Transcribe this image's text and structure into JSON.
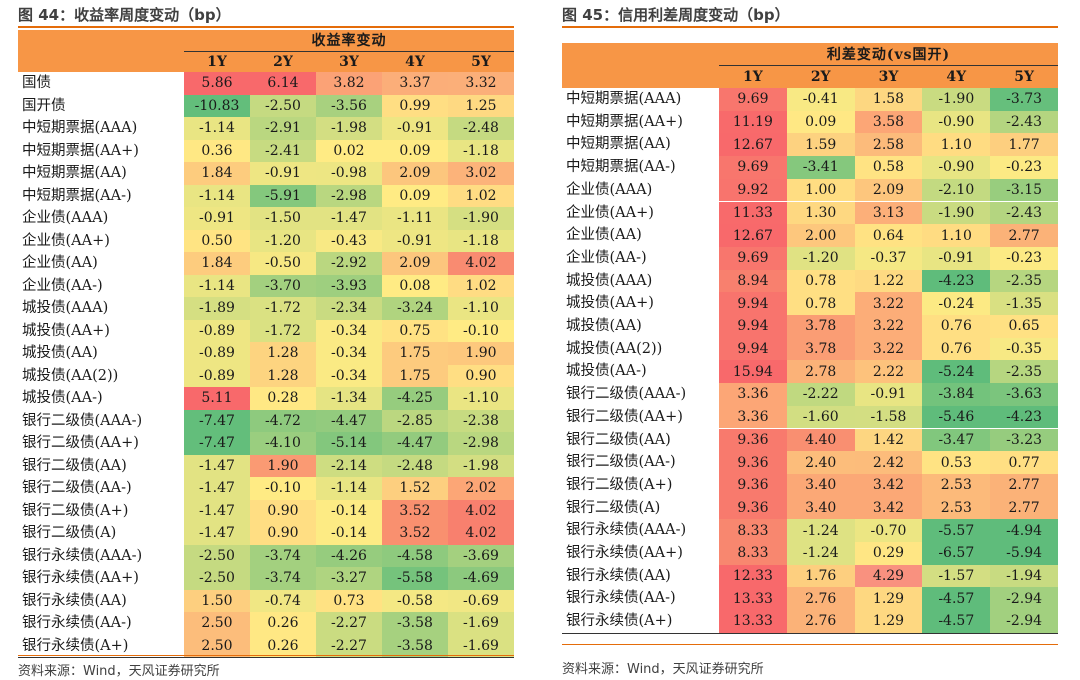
{
  "left": {
    "fig_title": "图 44：收益率周度变动（bp）",
    "header_title": "收益率变动",
    "columns": [
      "1Y",
      "2Y",
      "3Y",
      "4Y",
      "5Y"
    ],
    "source": "资料来源：Wind，天风证券研究所",
    "groups": [
      {
        "rows": [
          {
            "label": "国债",
            "values": [
              "5.86",
              "6.14",
              "3.82",
              "3.37",
              "3.32"
            ],
            "colors": [
              "#F8696B",
              "#F8696B",
              "#FBA276",
              "#FBAE79",
              "#FBAF79"
            ]
          },
          {
            "label": "国开债",
            "values": [
              "-10.83",
              "-2.50",
              "-3.56",
              "0.99",
              "1.25"
            ],
            "colors": [
              "#63BE7B",
              "#C5DA81",
              "#A8D17F",
              "#FFDE83",
              "#FED982"
            ]
          }
        ]
      },
      {
        "rows": [
          {
            "label": "中短期票据(AAA)",
            "values": [
              "-1.14",
              "-2.91",
              "-1.98",
              "-0.91",
              "-2.48"
            ],
            "colors": [
              "#E9E583",
              "#BAD780",
              "#D3DE82",
              "#EEE683",
              "#C5DA81"
            ]
          },
          {
            "label": "中短期票据(AA+)",
            "values": [
              "0.36",
              "-2.41",
              "0.02",
              "0.09",
              "-1.18"
            ],
            "colors": [
              "#FFE884",
              "#C7DB81",
              "#FFEB84",
              "#FFEB84",
              "#E8E583"
            ]
          },
          {
            "label": "中短期票据(AA)",
            "values": [
              "1.84",
              "-0.91",
              "-0.98",
              "2.09",
              "3.02"
            ],
            "colors": [
              "#FDCC7E",
              "#EEE683",
              "#EDE683",
              "#FCC67D",
              "#FCB37A"
            ]
          },
          {
            "label": "中短期票据(AA-)",
            "values": [
              "-1.14",
              "-5.91",
              "-2.98",
              "0.09",
              "1.02"
            ],
            "colors": [
              "#E9E583",
              "#84C87D",
              "#B9D780",
              "#FFEB84",
              "#FFDC83"
            ]
          }
        ]
      },
      {
        "rows": [
          {
            "label": "企业债(AAA)",
            "values": [
              "-0.91",
              "-1.50",
              "-1.47",
              "-1.11",
              "-1.90"
            ],
            "colors": [
              "#EEE683",
              "#E2E383",
              "#E2E383",
              "#EAE583",
              "#D5DF82"
            ]
          },
          {
            "label": "企业债(AA+)",
            "values": [
              "0.50",
              "-1.20",
              "-0.43",
              "-0.91",
              "-1.18"
            ],
            "colors": [
              "#FFE483",
              "#E8E583",
              "#F8E984",
              "#EEE683",
              "#E8E583"
            ]
          },
          {
            "label": "企业债(AA)",
            "values": [
              "1.84",
              "-0.50",
              "-2.92",
              "2.09",
              "4.02"
            ],
            "colors": [
              "#FDCC7E",
              "#F6E883",
              "#BAD780",
              "#FCC67D",
              "#F98B71"
            ]
          },
          {
            "label": "企业债(AA-)",
            "values": [
              "-1.14",
              "-3.70",
              "-3.93",
              "0.08",
              "1.02"
            ],
            "colors": [
              "#E9E583",
              "#A3D07F",
              "#9ECF7F",
              "#FFEB84",
              "#FFDC83"
            ]
          }
        ]
      },
      {
        "rows": [
          {
            "label": "城投债(AAA)",
            "values": [
              "-1.89",
              "-1.72",
              "-2.34",
              "-3.24",
              "-1.10"
            ],
            "colors": [
              "#D5DF82",
              "#DAE182",
              "#C9DB81",
              "#B0D47F",
              "#EAE583"
            ]
          },
          {
            "label": "城投债(AA+)",
            "values": [
              "-0.89",
              "-1.72",
              "-0.34",
              "0.75",
              "-0.10"
            ],
            "colors": [
              "#EEE683",
              "#DAE182",
              "#FAEA84",
              "#FFE283",
              "#FFEB84"
            ]
          },
          {
            "label": "城投债(AA)",
            "values": [
              "-0.89",
              "1.28",
              "-0.34",
              "1.75",
              "1.90"
            ],
            "colors": [
              "#EEE683",
              "#FDD480",
              "#FAEA84",
              "#FDCB7E",
              "#FDC87D"
            ]
          },
          {
            "label": "城投债(AA(2))",
            "values": [
              "-0.89",
              "1.28",
              "-0.34",
              "1.75",
              "0.90"
            ],
            "colors": [
              "#EEE683",
              "#FDD480",
              "#FAEA84",
              "#FDCB7E",
              "#FFDE83"
            ]
          },
          {
            "label": "城投债(AA-)",
            "values": [
              "5.11",
              "0.28",
              "-1.34",
              "-4.25",
              "-1.10"
            ],
            "colors": [
              "#F8696B",
              "#FFE884",
              "#E5E483",
              "#96CC7E",
              "#EAE583"
            ]
          }
        ]
      },
      {
        "rows": [
          {
            "label": "银行二级债(AAA-)",
            "values": [
              "-7.47",
              "-4.72",
              "-4.47",
              "-2.85",
              "-2.38"
            ],
            "colors": [
              "#63BE7B",
              "#8ECA7E",
              "#93CB7E",
              "#BBD780",
              "#C7DB81"
            ]
          },
          {
            "label": "银行二级债(AA+)",
            "values": [
              "-7.47",
              "-4.10",
              "-5.14",
              "-4.47",
              "-2.98"
            ],
            "colors": [
              "#63BE7B",
              "#9ACE7F",
              "#83C77D",
              "#93CB7E",
              "#B9D780"
            ]
          },
          {
            "label": "银行二级债(AA)",
            "values": [
              "-1.47",
              "1.90",
              "-2.14",
              "-2.48",
              "-1.98"
            ],
            "colors": [
              "#E2E383",
              "#FA9A73",
              "#CEDD81",
              "#C5DA81",
              "#D3DE82"
            ]
          },
          {
            "label": "银行二级债(AA-)",
            "values": [
              "-1.47",
              "-0.10",
              "-1.14",
              "1.52",
              "2.02"
            ],
            "colors": [
              "#E2E383",
              "#FFEB84",
              "#E9E583",
              "#FDCF7F",
              "#FCA676"
            ]
          },
          {
            "label": "银行二级债(A+)",
            "values": [
              "-1.47",
              "0.90",
              "-0.14",
              "3.52",
              "4.02"
            ],
            "colors": [
              "#E2E383",
              "#FFDE83",
              "#FDEB84",
              "#F9906F",
              "#F8806E"
            ]
          },
          {
            "label": "银行二级债(A)",
            "values": [
              "-1.47",
              "0.90",
              "-0.14",
              "3.52",
              "4.02"
            ],
            "colors": [
              "#E2E383",
              "#FFDE83",
              "#FDEB84",
              "#F9906F",
              "#F8806E"
            ]
          }
        ]
      },
      {
        "rows": [
          {
            "label": "银行永续债(AAA-)",
            "values": [
              "-2.50",
              "-3.74",
              "-4.26",
              "-4.58",
              "-3.69"
            ],
            "colors": [
              "#C5DA81",
              "#A3D07F",
              "#96CC7E",
              "#8ECA7E",
              "#A4D07F"
            ]
          },
          {
            "label": "银行永续债(AA+)",
            "values": [
              "-2.50",
              "-3.74",
              "-3.27",
              "-5.58",
              "-4.69"
            ],
            "colors": [
              "#C5DA81",
              "#A3D07F",
              "#AFD480",
              "#75C37C",
              "#8CC97E"
            ]
          },
          {
            "label": "银行永续债(AA)",
            "values": [
              "1.50",
              "-0.74",
              "0.73",
              "-0.58",
              "-0.69"
            ],
            "colors": [
              "#FDCF7F",
              "#F0E784",
              "#FFE283",
              "#F4E884",
              "#F1E784"
            ]
          },
          {
            "label": "银行永续债(AA-)",
            "values": [
              "2.50",
              "0.26",
              "-2.27",
              "-3.58",
              "-1.69"
            ],
            "colors": [
              "#FCBD7B",
              "#FFE884",
              "#CADC81",
              "#A6D17F",
              "#DAE182"
            ]
          },
          {
            "label": "银行永续债(A+)",
            "values": [
              "2.50",
              "0.26",
              "-2.27",
              "-3.58",
              "-1.69"
            ],
            "colors": [
              "#FCBD7B",
              "#FFE884",
              "#CADC81",
              "#A6D17F",
              "#DAE182"
            ]
          }
        ]
      }
    ]
  },
  "right": {
    "fig_title": "图 45：信用利差周度变动（bp）",
    "header_title": "利差变动(vs国开)",
    "columns": [
      "1Y",
      "2Y",
      "3Y",
      "4Y",
      "5Y"
    ],
    "source": "资料来源：Wind，天风证券研究所",
    "groups": [
      {
        "rows": [
          {
            "label": "中短期票据(AAA)",
            "values": [
              "9.69",
              "-0.41",
              "1.58",
              "-1.90",
              "-3.73"
            ],
            "colors": [
              "#F8766D",
              "#F8E984",
              "#FDD781",
              "#C9DB81",
              "#66BF7C"
            ]
          },
          {
            "label": "中短期票据(AA+)",
            "values": [
              "11.19",
              "0.09",
              "3.58",
              "-0.90",
              "-2.43"
            ],
            "colors": [
              "#F86A6B",
              "#FFE884",
              "#FCA676",
              "#E8E583",
              "#B4D580"
            ]
          },
          {
            "label": "中短期票据(AA)",
            "values": [
              "12.67",
              "1.59",
              "2.58",
              "1.10",
              "1.77"
            ],
            "colors": [
              "#F8696B",
              "#FDD280",
              "#FCBB7B",
              "#FFDC82",
              "#FDCF7F"
            ]
          },
          {
            "label": "中短期票据(AA-)",
            "values": [
              "9.69",
              "-3.41",
              "0.58",
              "-0.90",
              "-0.23"
            ],
            "colors": [
              "#F8766D",
              "#85C87D",
              "#FFE383",
              "#E8E583",
              "#FCEA84"
            ]
          }
        ]
      },
      {
        "rows": [
          {
            "label": "企业债(AAA)",
            "values": [
              "9.92",
              "1.00",
              "2.09",
              "-2.10",
              "-3.15"
            ],
            "colors": [
              "#F8746D",
              "#FFDD82",
              "#FDC67D",
              "#C3DA81",
              "#98CD7E"
            ]
          },
          {
            "label": "企业债(AA+)",
            "values": [
              "11.33",
              "1.30",
              "3.13",
              "-1.90",
              "-2.43"
            ],
            "colors": [
              "#F86A6B",
              "#FED881",
              "#FCAF79",
              "#C9DB81",
              "#B4D580"
            ]
          },
          {
            "label": "企业债(AA)",
            "values": [
              "12.67",
              "2.00",
              "0.64",
              "1.10",
              "2.77"
            ],
            "colors": [
              "#F8696B",
              "#FDC77D",
              "#FFE283",
              "#FFDC82",
              "#FBB278"
            ]
          },
          {
            "label": "企业债(AA-)",
            "values": [
              "9.69",
              "-1.20",
              "-0.37",
              "-0.91",
              "-0.23"
            ],
            "colors": [
              "#F8766D",
              "#E0E283",
              "#F5E884",
              "#E8E583",
              "#FCEA84"
            ]
          }
        ]
      },
      {
        "rows": [
          {
            "label": "城投债(AAA)",
            "values": [
              "8.94",
              "0.78",
              "1.22",
              "-4.23",
              "-2.35"
            ],
            "colors": [
              "#F8806E",
              "#FFDF83",
              "#FEDA82",
              "#5FBC7B",
              "#B6D680"
            ]
          },
          {
            "label": "城投债(AA+)",
            "values": [
              "9.94",
              "0.78",
              "3.22",
              "-0.24",
              "-1.35"
            ],
            "colors": [
              "#F8746D",
              "#FFDF83",
              "#FCAD78",
              "#FCEA84",
              "#D9E082"
            ]
          },
          {
            "label": "城投债(AA)",
            "values": [
              "9.94",
              "3.78",
              "3.22",
              "0.76",
              "0.65"
            ],
            "colors": [
              "#F8746D",
              "#FA9D74",
              "#FCAD78",
              "#FFDF83",
              "#FFE183"
            ]
          },
          {
            "label": "城投债(AA(2))",
            "values": [
              "9.94",
              "3.78",
              "3.22",
              "0.76",
              "-0.35"
            ],
            "colors": [
              "#F8746D",
              "#FA9D74",
              "#FCAD78",
              "#FFDF83",
              "#F7E984"
            ]
          },
          {
            "label": "城投债(AA-)",
            "values": [
              "15.94",
              "2.78",
              "2.22",
              "-5.24",
              "-2.35"
            ],
            "colors": [
              "#F8696B",
              "#FBB278",
              "#FDC27C",
              "#5FBC7B",
              "#B6D680"
            ]
          }
        ]
      },
      {
        "rows": [
          {
            "label": "银行二级债(AAA-)",
            "values": [
              "3.36",
              "-2.22",
              "-0.91",
              "-3.84",
              "-3.63"
            ],
            "colors": [
              "#FCA676",
              "#C0D980",
              "#E8E583",
              "#73C37C",
              "#7BC57D"
            ]
          },
          {
            "label": "银行二级债(AA+)",
            "values": [
              "3.36",
              "-1.60",
              "-1.58",
              "-5.46",
              "-4.23"
            ],
            "colors": [
              "#FCA676",
              "#D2DE82",
              "#D3DE82",
              "#5FBC7B",
              "#5FBC7B"
            ]
          },
          {
            "label": "银行二级债(AA)",
            "values": [
              "9.36",
              "4.40",
              "1.42",
              "-3.47",
              "-3.23"
            ],
            "colors": [
              "#F87A6D",
              "#F98F71",
              "#FDD681",
              "#81C77D",
              "#96CC7E"
            ]
          },
          {
            "label": "银行二级债(AA-)",
            "values": [
              "9.36",
              "2.40",
              "2.42",
              "0.53",
              "0.77"
            ],
            "colors": [
              "#F87A6D",
              "#FCBD7B",
              "#FCBC7B",
              "#FFE383",
              "#FFDF83"
            ]
          },
          {
            "label": "银行二级债(A+)",
            "values": [
              "9.36",
              "3.40",
              "3.42",
              "2.53",
              "2.77"
            ],
            "colors": [
              "#F87A6D",
              "#FBA876",
              "#FBA876",
              "#FCBA7A",
              "#FBB278"
            ]
          },
          {
            "label": "银行二级债(A)",
            "values": [
              "9.36",
              "3.40",
              "3.42",
              "2.53",
              "2.77"
            ],
            "colors": [
              "#F87A6D",
              "#FBA876",
              "#FBA876",
              "#FCBA7A",
              "#FBB278"
            ]
          }
        ]
      },
      {
        "rows": [
          {
            "label": "银行永续债(AAA-)",
            "values": [
              "8.33",
              "-1.24",
              "-0.70",
              "-5.57",
              "-4.94"
            ],
            "colors": [
              "#F8876F",
              "#DEE283",
              "#ECE683",
              "#5FBC7B",
              "#5FBC7B"
            ]
          },
          {
            "label": "银行永续债(AA+)",
            "values": [
              "8.33",
              "-1.24",
              "0.29",
              "-6.57",
              "-5.94"
            ],
            "colors": [
              "#F8876F",
              "#DEE283",
              "#FFE684",
              "#5FBC7B",
              "#5FBC7B"
            ]
          },
          {
            "label": "银行永续债(AA)",
            "values": [
              "12.33",
              "1.76",
              "4.29",
              "-1.57",
              "-1.94"
            ],
            "colors": [
              "#F8696B",
              "#FDCF7F",
              "#F9917F",
              "#D3DE82",
              "#C8DB81"
            ]
          },
          {
            "label": "银行永续债(AA-)",
            "values": [
              "13.33",
              "2.76",
              "1.29",
              "-4.57",
              "-2.94"
            ],
            "colors": [
              "#F8696B",
              "#FBB278",
              "#FED881",
              "#5FBC7B",
              "#A2D07F"
            ]
          },
          {
            "label": "银行永续债(A+)",
            "values": [
              "13.33",
              "2.76",
              "1.29",
              "-4.57",
              "-2.94"
            ],
            "colors": [
              "#F8696B",
              "#FBB278",
              "#FED881",
              "#5FBC7B",
              "#A2D07F"
            ]
          }
        ]
      }
    ]
  }
}
